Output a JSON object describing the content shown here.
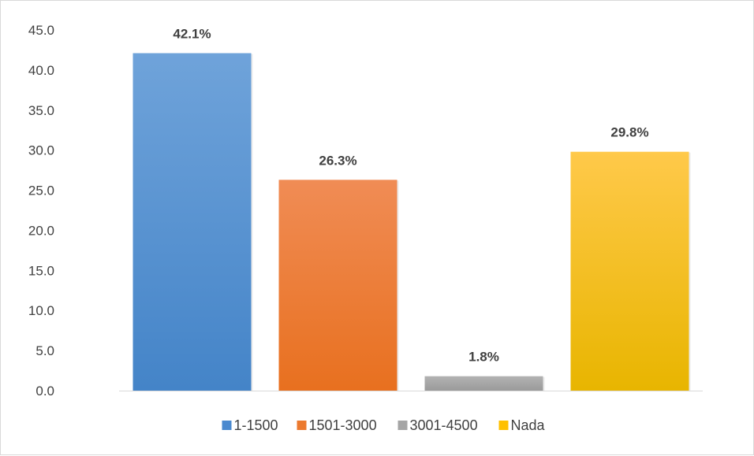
{
  "chart_data": {
    "type": "bar",
    "title": "",
    "categories": [
      "1-1500",
      "1501-3000",
      "3001-4500",
      "Nada"
    ],
    "values": [
      42.1,
      26.3,
      1.8,
      29.8
    ],
    "data_labels": [
      "42.1%",
      "26.3%",
      "1.8%",
      "29.8%"
    ],
    "colors": [
      {
        "top": "#6fa3da",
        "bottom": "#4484c8"
      },
      {
        "top": "#f08c55",
        "bottom": "#e8701f"
      },
      {
        "top": "#b3b3b3",
        "bottom": "#9a9a9a"
      },
      {
        "top": "#ffc94a",
        "bottom": "#e8b500"
      }
    ],
    "legend_colors": [
      "#4a89cf",
      "#ec7a2f",
      "#a5a5a5",
      "#ffc000"
    ],
    "ylim": [
      0,
      45
    ],
    "yticks": [
      "0.0",
      "5.0",
      "10.0",
      "15.0",
      "20.0",
      "25.0",
      "30.0",
      "35.0",
      "40.0",
      "45.0"
    ],
    "legend": {
      "position": "bottom",
      "entries": [
        "1-1500",
        "1501-3000",
        "3001-4500",
        "Nada"
      ]
    },
    "grid": false,
    "xlabel": "",
    "ylabel": ""
  }
}
